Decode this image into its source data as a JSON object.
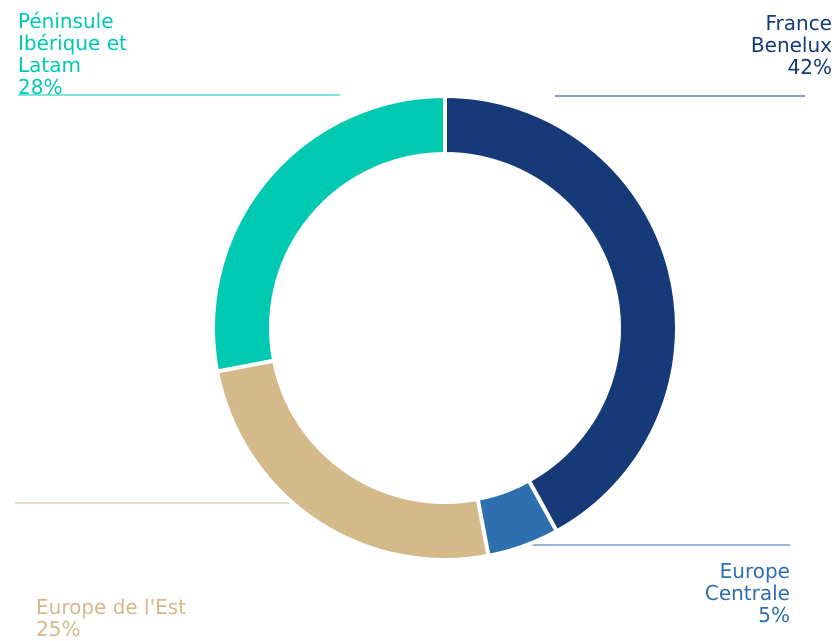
{
  "chart_data": {
    "type": "donut",
    "categories": [
      "France Benelux",
      "Europe Centrale",
      "Europe de l'Est",
      "Péninsule Ibérique et Latam"
    ],
    "values": [
      42,
      5,
      25,
      28
    ],
    "value_labels": [
      "42%",
      "5%",
      "25%",
      "28%"
    ],
    "colors": [
      "#163a78",
      "#2e6fb0",
      "#d4b98a",
      "#00c9b1"
    ]
  }
}
